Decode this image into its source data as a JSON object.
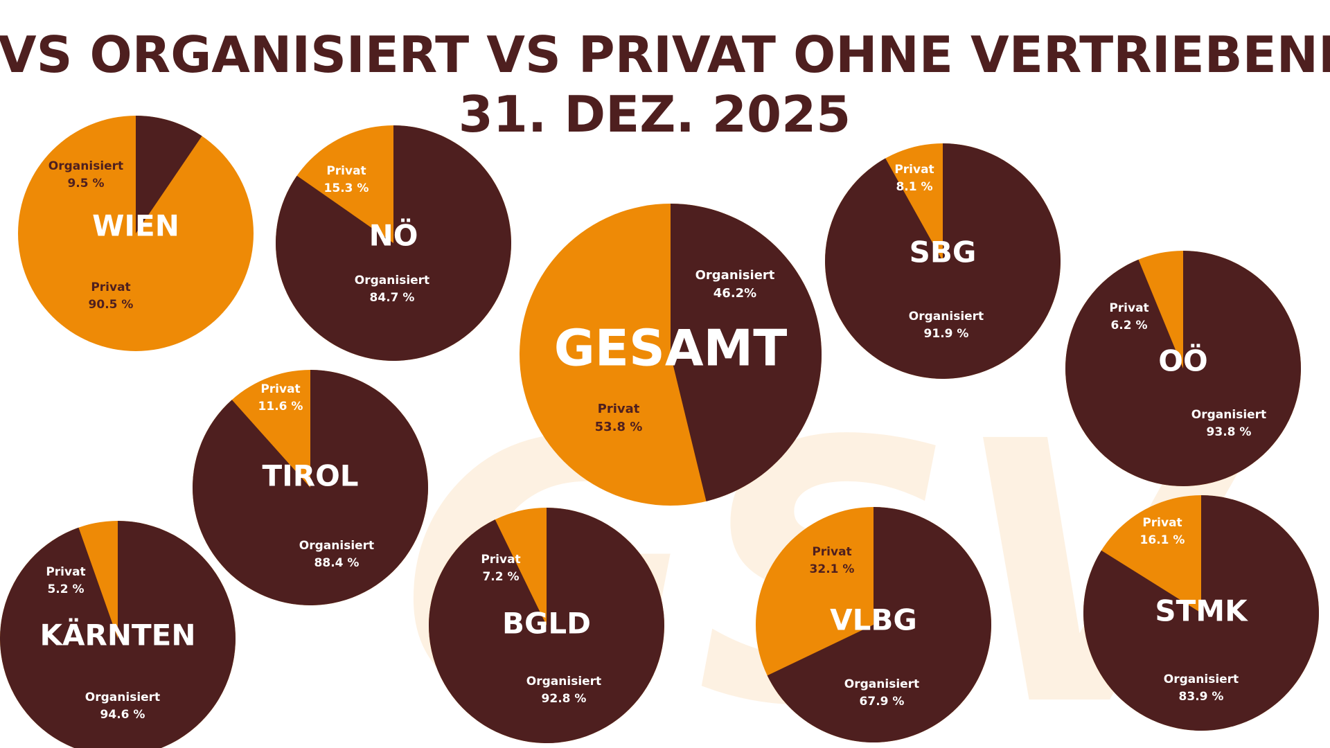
{
  "title_line1": "GVS ORGANISIERT VS PRIVAT OHNE VERTRIEBENE",
  "title_line2": "31. DEZ. 2025",
  "watermark": "GSV",
  "colors": {
    "organisiert": "#4e1f1f",
    "privat": "#ee8a06",
    "title": "#4e1f1f",
    "watermark": "#fdf1e2"
  },
  "chart_data": [
    {
      "type": "pie",
      "region": "WIEN",
      "slices": [
        {
          "label": "Organisiert",
          "value": 9.5,
          "text": "9.5 %"
        },
        {
          "label": "Privat",
          "value": 90.5,
          "text": "90.5 %"
        }
      ]
    },
    {
      "type": "pie",
      "region": "NÖ",
      "slices": [
        {
          "label": "Organisiert",
          "value": 84.7,
          "text": "84.7 %"
        },
        {
          "label": "Privat",
          "value": 15.3,
          "text": "15.3 %"
        }
      ]
    },
    {
      "type": "pie",
      "region": "GESAMT",
      "slices": [
        {
          "label": "Organisiert",
          "value": 46.2,
          "text": "46.2%"
        },
        {
          "label": "Privat",
          "value": 53.8,
          "text": "53.8 %"
        }
      ]
    },
    {
      "type": "pie",
      "region": "SBG",
      "slices": [
        {
          "label": "Organisiert",
          "value": 91.9,
          "text": "91.9 %"
        },
        {
          "label": "Privat",
          "value": 8.1,
          "text": "8.1 %"
        }
      ]
    },
    {
      "type": "pie",
      "region": "OÖ",
      "slices": [
        {
          "label": "Organisiert",
          "value": 93.8,
          "text": "93.8 %"
        },
        {
          "label": "Privat",
          "value": 6.2,
          "text": "6.2 %"
        }
      ]
    },
    {
      "type": "pie",
      "region": "TIROL",
      "slices": [
        {
          "label": "Organisiert",
          "value": 88.4,
          "text": "88.4 %"
        },
        {
          "label": "Privat",
          "value": 11.6,
          "text": "11.6 %"
        }
      ]
    },
    {
      "type": "pie",
      "region": "KÄRNTEN",
      "slices": [
        {
          "label": "Organisiert",
          "value": 94.6,
          "text": "94.6 %"
        },
        {
          "label": "Privat",
          "value": 5.2,
          "text": "5.2 %"
        }
      ]
    },
    {
      "type": "pie",
      "region": "BGLD",
      "slices": [
        {
          "label": "Organisiert",
          "value": 92.8,
          "text": "92.8 %"
        },
        {
          "label": "Privat",
          "value": 7.2,
          "text": "7.2 %"
        }
      ]
    },
    {
      "type": "pie",
      "region": "VLBG",
      "slices": [
        {
          "label": "Organisiert",
          "value": 67.9,
          "text": "67.9 %"
        },
        {
          "label": "Privat",
          "value": 32.1,
          "text": "32.1 %"
        }
      ]
    },
    {
      "type": "pie",
      "region": "STMK",
      "slices": [
        {
          "label": "Organisiert",
          "value": 83.9,
          "text": "83.9 %"
        },
        {
          "label": "Privat",
          "value": 16.1,
          "text": "16.1 %"
        }
      ]
    }
  ]
}
